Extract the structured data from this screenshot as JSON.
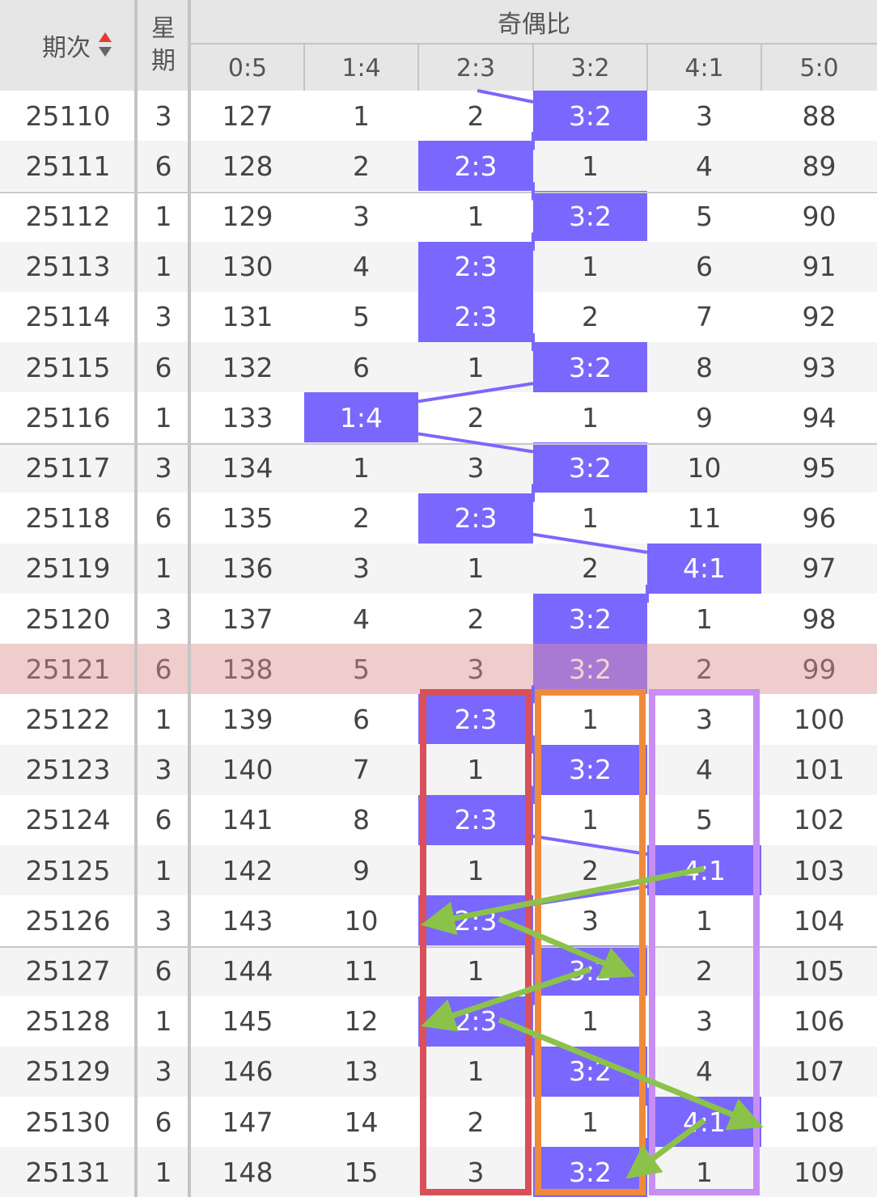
{
  "header": {
    "period_label": "期次",
    "weekday_label": [
      "星",
      "期"
    ],
    "group_title": "奇偶比",
    "ratio_columns": [
      "0:5",
      "1:4",
      "2:3",
      "3:2",
      "4:1",
      "5:0"
    ]
  },
  "icons": {
    "sort": "sort-up-down-icon"
  },
  "colors": {
    "hit": "#7a67fd",
    "trend_line": "#7a67fd",
    "highlight_row": "#f0c6c6",
    "box_red": "#d9505a",
    "box_orange": "#ef8a3c",
    "box_violet": "#c78ef3",
    "arrow_green": "#8bc34a",
    "sort_up": "#e53935",
    "sort_down": "#666666"
  },
  "highlight_period": "25121",
  "rows": [
    {
      "period": "25110",
      "weekday": "3",
      "cells": [
        "127",
        "1",
        "2",
        "3:2",
        "3",
        "88"
      ],
      "hit": 3
    },
    {
      "period": "25111",
      "weekday": "6",
      "cells": [
        "128",
        "2",
        "2:3",
        "1",
        "4",
        "89"
      ],
      "hit": 2
    },
    {
      "period": "25112",
      "weekday": "1",
      "cells": [
        "129",
        "3",
        "1",
        "3:2",
        "5",
        "90"
      ],
      "hit": 3
    },
    {
      "period": "25113",
      "weekday": "1",
      "cells": [
        "130",
        "4",
        "2:3",
        "1",
        "6",
        "91"
      ],
      "hit": 2
    },
    {
      "period": "25114",
      "weekday": "3",
      "cells": [
        "131",
        "5",
        "2:3",
        "2",
        "7",
        "92"
      ],
      "hit": 2
    },
    {
      "period": "25115",
      "weekday": "6",
      "cells": [
        "132",
        "6",
        "1",
        "3:2",
        "8",
        "93"
      ],
      "hit": 3
    },
    {
      "period": "25116",
      "weekday": "1",
      "cells": [
        "133",
        "1:4",
        "2",
        "1",
        "9",
        "94"
      ],
      "hit": 1
    },
    {
      "period": "25117",
      "weekday": "3",
      "cells": [
        "134",
        "1",
        "3",
        "3:2",
        "10",
        "95"
      ],
      "hit": 3
    },
    {
      "period": "25118",
      "weekday": "6",
      "cells": [
        "135",
        "2",
        "2:3",
        "1",
        "11",
        "96"
      ],
      "hit": 2
    },
    {
      "period": "25119",
      "weekday": "1",
      "cells": [
        "136",
        "3",
        "1",
        "2",
        "4:1",
        "97"
      ],
      "hit": 4
    },
    {
      "period": "25120",
      "weekday": "3",
      "cells": [
        "137",
        "4",
        "2",
        "3:2",
        "1",
        "98"
      ],
      "hit": 3
    },
    {
      "period": "25121",
      "weekday": "6",
      "cells": [
        "138",
        "5",
        "3",
        "3:2",
        "2",
        "99"
      ],
      "hit": 3
    },
    {
      "period": "25122",
      "weekday": "1",
      "cells": [
        "139",
        "6",
        "2:3",
        "1",
        "3",
        "100"
      ],
      "hit": 2
    },
    {
      "period": "25123",
      "weekday": "3",
      "cells": [
        "140",
        "7",
        "1",
        "3:2",
        "4",
        "101"
      ],
      "hit": 3
    },
    {
      "period": "25124",
      "weekday": "6",
      "cells": [
        "141",
        "8",
        "2:3",
        "1",
        "5",
        "102"
      ],
      "hit": 2
    },
    {
      "period": "25125",
      "weekday": "1",
      "cells": [
        "142",
        "9",
        "1",
        "2",
        "4:1",
        "103"
      ],
      "hit": 4
    },
    {
      "period": "25126",
      "weekday": "3",
      "cells": [
        "143",
        "10",
        "2:3",
        "3",
        "1",
        "104"
      ],
      "hit": 2
    },
    {
      "period": "25127",
      "weekday": "6",
      "cells": [
        "144",
        "11",
        "1",
        "3:2",
        "2",
        "105"
      ],
      "hit": 3
    },
    {
      "period": "25128",
      "weekday": "1",
      "cells": [
        "145",
        "12",
        "2:3",
        "1",
        "3",
        "106"
      ],
      "hit": 2
    },
    {
      "period": "25129",
      "weekday": "3",
      "cells": [
        "146",
        "13",
        "1",
        "3:2",
        "4",
        "107"
      ],
      "hit": 3
    },
    {
      "period": "25130",
      "weekday": "6",
      "cells": [
        "147",
        "14",
        "2",
        "1",
        "4:1",
        "108"
      ],
      "hit": 4
    },
    {
      "period": "25131",
      "weekday": "1",
      "cells": [
        "148",
        "15",
        "3",
        "3:2",
        "1",
        "109"
      ],
      "hit": 3
    }
  ],
  "annotation_boxes": [
    {
      "name": "red-box-2-3-column",
      "column": 2,
      "from_row": 12,
      "to_row": 21,
      "color": "#d9505a"
    },
    {
      "name": "orange-box-3-2-column",
      "column": 3,
      "from_row": 12,
      "to_row": 21,
      "color": "#ef8a3c"
    },
    {
      "name": "violet-box-4-1-column",
      "column": 4,
      "from_row": 12,
      "to_row": 21,
      "color": "#c78ef3"
    }
  ],
  "annotation_arrows": [
    {
      "from_col": 4,
      "from_row": 15,
      "to_col": 2,
      "to_row": 16
    },
    {
      "from_col": 2,
      "from_row": 16,
      "to_col": 3,
      "to_row": 17
    },
    {
      "from_col": 3,
      "from_row": 17,
      "to_col": 2,
      "to_row": 18
    },
    {
      "from_col": 2,
      "from_row": 18,
      "to_col": 5,
      "to_row": 20
    },
    {
      "from_col": 4,
      "from_row": 20,
      "to_col": 3,
      "to_row": 21
    }
  ]
}
